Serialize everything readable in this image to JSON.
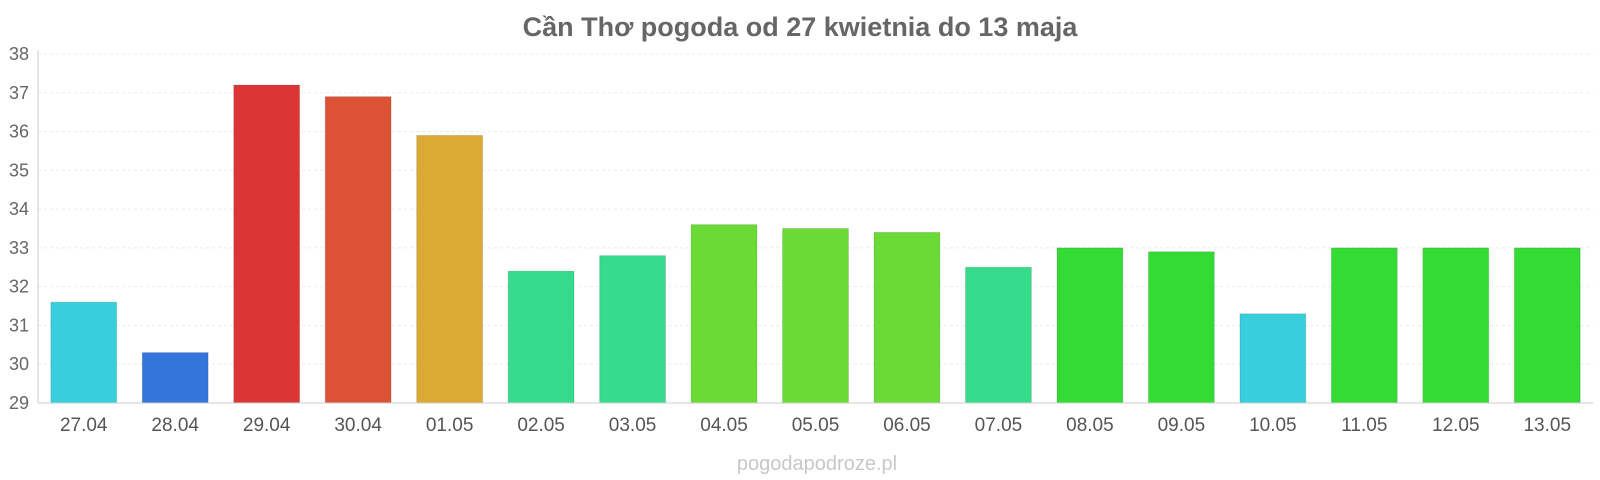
{
  "chart_data": {
    "type": "bar",
    "title": "Cần Thơ pogoda od 27 kwietnia do 13 maja",
    "xlabel": "",
    "ylabel": "",
    "ylim": [
      29,
      38
    ],
    "yticks": [
      29,
      30,
      31,
      32,
      33,
      34,
      35,
      36,
      37,
      38
    ],
    "categories": [
      "27.04",
      "28.04",
      "29.04",
      "30.04",
      "01.05",
      "02.05",
      "03.05",
      "04.05",
      "05.05",
      "06.05",
      "07.05",
      "08.05",
      "09.05",
      "10.05",
      "11.05",
      "12.05",
      "13.05"
    ],
    "values": [
      31.6,
      30.3,
      37.2,
      36.9,
      35.9,
      32.4,
      32.8,
      33.6,
      33.5,
      33.4,
      32.5,
      33.0,
      32.9,
      31.3,
      33.0,
      33.0,
      33.0
    ],
    "colors": [
      "#36cfdb",
      "#3575db",
      "#db3535",
      "#db5235",
      "#dba935",
      "#36db8c",
      "#36db8c",
      "#6adb35",
      "#6adb35",
      "#6adb35",
      "#36db8c",
      "#35db35",
      "#35db35",
      "#36cfdb",
      "#35db35",
      "#35db35",
      "#35db35"
    ],
    "grid": true,
    "legend": "none"
  },
  "watermark": "pogodapodroze.pl"
}
